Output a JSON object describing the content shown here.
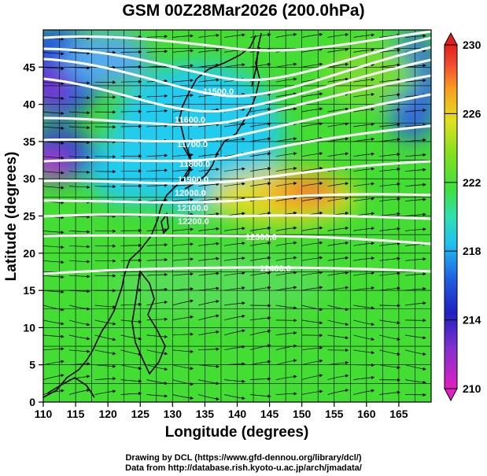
{
  "title": "GSM 00Z28Mar2026 (200.0hPa)",
  "x_axis": {
    "label": "Longitude (degrees)",
    "ticks": [
      "110",
      "115",
      "120",
      "125",
      "130",
      "135",
      "140",
      "145",
      "150",
      "155",
      "160",
      "165"
    ],
    "range": [
      110,
      170
    ]
  },
  "y_axis": {
    "label": "Latitude (degrees)",
    "ticks": [
      "0",
      "5",
      "10",
      "15",
      "20",
      "25",
      "30",
      "35",
      "40",
      "45"
    ],
    "range": [
      0,
      50
    ]
  },
  "contour_labels": [
    "11500.0",
    "11600.0",
    "11700.0",
    "11800.0",
    "11900.0",
    "12000.0",
    "12100.0",
    "12200.0",
    "12300.0",
    "12400.0"
  ],
  "colorbar": {
    "labels": [
      "210",
      "214",
      "218",
      "222",
      "226",
      "230"
    ],
    "range": [
      210,
      230
    ],
    "colors": [
      "#e020c0",
      "#8030d0",
      "#2020c0",
      "#2060e0",
      "#20c0f0",
      "#30e0b0",
      "#40e040",
      "#80e020",
      "#e0e020",
      "#f8a020",
      "#f05030",
      "#e02020"
    ]
  },
  "credits": {
    "line1": "Drawing by DCL (https://www.gfd-dennou.org/library/dcl/)",
    "line2": "Data from http://database.rish.kyoto-u.ac.jp/arch/jmadata/"
  }
}
